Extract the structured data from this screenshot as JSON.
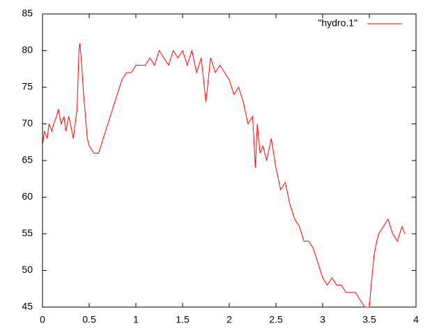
{
  "chart_data": {
    "type": "line",
    "x": [
      0,
      0.02,
      0.05,
      0.07,
      0.1,
      0.12,
      0.15,
      0.17,
      0.2,
      0.23,
      0.25,
      0.28,
      0.3,
      0.33,
      0.35,
      0.37,
      0.39,
      0.4,
      0.42,
      0.44,
      0.46,
      0.48,
      0.5,
      0.55,
      0.6,
      0.65,
      0.7,
      0.75,
      0.8,
      0.85,
      0.9,
      0.95,
      1.0,
      1.05,
      1.1,
      1.15,
      1.2,
      1.25,
      1.3,
      1.35,
      1.4,
      1.45,
      1.5,
      1.55,
      1.6,
      1.65,
      1.7,
      1.75,
      1.8,
      1.85,
      1.9,
      1.95,
      2.0,
      2.05,
      2.1,
      2.15,
      2.2,
      2.25,
      2.28,
      2.3,
      2.33,
      2.36,
      2.4,
      2.45,
      2.5,
      2.55,
      2.6,
      2.65,
      2.7,
      2.75,
      2.8,
      2.85,
      2.9,
      2.95,
      3.0,
      3.05,
      3.1,
      3.15,
      3.2,
      3.25,
      3.3,
      3.35,
      3.4,
      3.45,
      3.5,
      3.52,
      3.55,
      3.58,
      3.6,
      3.65,
      3.7,
      3.75,
      3.8,
      3.85,
      3.88
    ],
    "series": [
      {
        "name": "\"hydro.1\"",
        "color": "#ff0000",
        "values": [
          67,
          69,
          68,
          70,
          69,
          70,
          71,
          72,
          70,
          71,
          69,
          71,
          70,
          68,
          70,
          72,
          80,
          81,
          78,
          74,
          71,
          68,
          67,
          66,
          66,
          68,
          70,
          72,
          74,
          76,
          77,
          77,
          78,
          78,
          78,
          79,
          78,
          80,
          79,
          78,
          80,
          79,
          80,
          78,
          80,
          77,
          79,
          73,
          79,
          77,
          78,
          77,
          76,
          74,
          75,
          73,
          70,
          71,
          64,
          70,
          66,
          67,
          65,
          68,
          64,
          61,
          62,
          59,
          57,
          56,
          54,
          54,
          53,
          51,
          49,
          48,
          49,
          48,
          48,
          47,
          47,
          47,
          46,
          45,
          45,
          48,
          52,
          54,
          55,
          56,
          57,
          55,
          54,
          56,
          55
        ]
      }
    ],
    "xlim": [
      0,
      4
    ],
    "xticks": [
      0,
      0.5,
      1,
      1.5,
      2,
      2.5,
      3,
      3.5,
      4
    ],
    "ylim": [
      45,
      85
    ],
    "yticks": [
      45,
      50,
      55,
      60,
      65,
      70,
      75,
      80,
      85
    ],
    "legend": "top-right"
  }
}
